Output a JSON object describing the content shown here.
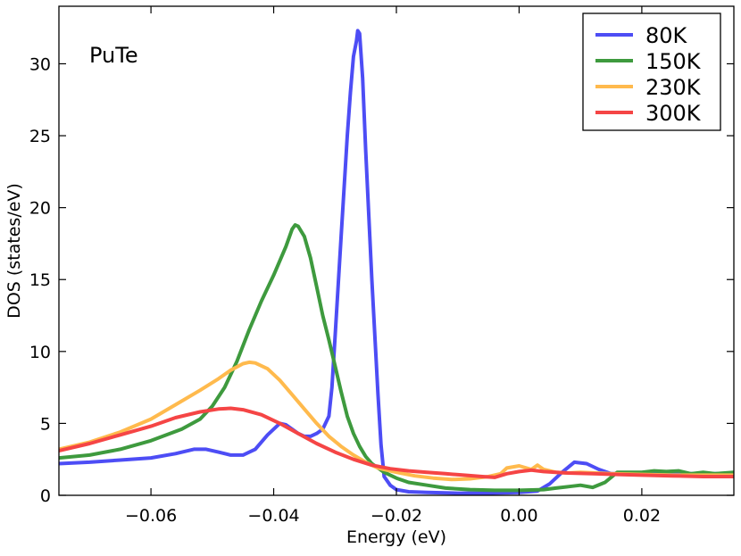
{
  "chart_data": {
    "type": "line",
    "title": "",
    "annotation": "PuTe",
    "xlabel": "Energy (eV)",
    "ylabel": "DOS (states/eV)",
    "xlim": [
      -0.075,
      0.035
    ],
    "ylim": [
      0,
      34
    ],
    "legend_position": "top-right",
    "x_ticks": [
      {
        "value": -0.06,
        "label": "−0.06"
      },
      {
        "value": -0.04,
        "label": "−0.04"
      },
      {
        "value": -0.02,
        "label": "−0.02"
      },
      {
        "value": 0.0,
        "label": "0.00"
      },
      {
        "value": 0.02,
        "label": "0.02"
      }
    ],
    "y_ticks": [
      {
        "value": 0,
        "label": "0"
      },
      {
        "value": 5,
        "label": "5"
      },
      {
        "value": 10,
        "label": "10"
      },
      {
        "value": 15,
        "label": "15"
      },
      {
        "value": 20,
        "label": "20"
      },
      {
        "value": 25,
        "label": "25"
      },
      {
        "value": 30,
        "label": "30"
      }
    ],
    "series": [
      {
        "name": "80K",
        "color": "#4d4df5",
        "points": [
          [
            -0.075,
            2.2
          ],
          [
            -0.07,
            2.3
          ],
          [
            -0.065,
            2.45
          ],
          [
            -0.06,
            2.6
          ],
          [
            -0.056,
            2.9
          ],
          [
            -0.053,
            3.2
          ],
          [
            -0.051,
            3.2
          ],
          [
            -0.049,
            3.0
          ],
          [
            -0.047,
            2.8
          ],
          [
            -0.045,
            2.8
          ],
          [
            -0.043,
            3.2
          ],
          [
            -0.041,
            4.2
          ],
          [
            -0.039,
            5.0
          ],
          [
            -0.038,
            4.9
          ],
          [
            -0.037,
            4.6
          ],
          [
            -0.036,
            4.3
          ],
          [
            -0.035,
            4.1
          ],
          [
            -0.034,
            4.1
          ],
          [
            -0.033,
            4.3
          ],
          [
            -0.032,
            4.6
          ],
          [
            -0.031,
            5.5
          ],
          [
            -0.0305,
            7.5
          ],
          [
            -0.03,
            11.0
          ],
          [
            -0.029,
            18.0
          ],
          [
            -0.028,
            25.0
          ],
          [
            -0.0275,
            28.0
          ],
          [
            -0.027,
            30.5
          ],
          [
            -0.0265,
            31.6
          ],
          [
            -0.0263,
            32.3
          ],
          [
            -0.026,
            32.1
          ],
          [
            -0.0255,
            29.0
          ],
          [
            -0.025,
            24.0
          ],
          [
            -0.024,
            15.0
          ],
          [
            -0.023,
            7.0
          ],
          [
            -0.0225,
            3.5
          ],
          [
            -0.022,
            1.3
          ],
          [
            -0.021,
            0.7
          ],
          [
            -0.02,
            0.4
          ],
          [
            -0.018,
            0.25
          ],
          [
            -0.015,
            0.2
          ],
          [
            -0.01,
            0.15
          ],
          [
            -0.005,
            0.15
          ],
          [
            0.0,
            0.2
          ],
          [
            0.003,
            0.3
          ],
          [
            0.005,
            0.8
          ],
          [
            0.007,
            1.6
          ],
          [
            0.009,
            2.3
          ],
          [
            0.011,
            2.2
          ],
          [
            0.013,
            1.8
          ],
          [
            0.015,
            1.5
          ],
          [
            0.02,
            1.5
          ],
          [
            0.025,
            1.5
          ],
          [
            0.03,
            1.5
          ],
          [
            0.035,
            1.5
          ]
        ]
      },
      {
        "name": "150K",
        "color": "#3e9a3e",
        "points": [
          [
            -0.075,
            2.6
          ],
          [
            -0.07,
            2.8
          ],
          [
            -0.065,
            3.2
          ],
          [
            -0.06,
            3.8
          ],
          [
            -0.055,
            4.6
          ],
          [
            -0.052,
            5.3
          ],
          [
            -0.05,
            6.2
          ],
          [
            -0.048,
            7.5
          ],
          [
            -0.046,
            9.3
          ],
          [
            -0.044,
            11.5
          ],
          [
            -0.042,
            13.5
          ],
          [
            -0.04,
            15.3
          ],
          [
            -0.038,
            17.3
          ],
          [
            -0.037,
            18.5
          ],
          [
            -0.0365,
            18.8
          ],
          [
            -0.036,
            18.7
          ],
          [
            -0.035,
            18.0
          ],
          [
            -0.034,
            16.5
          ],
          [
            -0.033,
            14.5
          ],
          [
            -0.032,
            12.5
          ],
          [
            -0.031,
            10.8
          ],
          [
            -0.03,
            9.0
          ],
          [
            -0.029,
            7.2
          ],
          [
            -0.028,
            5.5
          ],
          [
            -0.027,
            4.3
          ],
          [
            -0.026,
            3.4
          ],
          [
            -0.025,
            2.7
          ],
          [
            -0.024,
            2.2
          ],
          [
            -0.022,
            1.6
          ],
          [
            -0.02,
            1.2
          ],
          [
            -0.018,
            0.9
          ],
          [
            -0.015,
            0.7
          ],
          [
            -0.012,
            0.5
          ],
          [
            -0.008,
            0.4
          ],
          [
            -0.004,
            0.35
          ],
          [
            0.0,
            0.35
          ],
          [
            0.004,
            0.4
          ],
          [
            0.006,
            0.5
          ],
          [
            0.008,
            0.6
          ],
          [
            0.01,
            0.7
          ],
          [
            0.012,
            0.55
          ],
          [
            0.014,
            0.9
          ],
          [
            0.016,
            1.6
          ],
          [
            0.018,
            1.6
          ],
          [
            0.02,
            1.6
          ],
          [
            0.022,
            1.7
          ],
          [
            0.024,
            1.65
          ],
          [
            0.026,
            1.7
          ],
          [
            0.028,
            1.5
          ],
          [
            0.03,
            1.6
          ],
          [
            0.032,
            1.5
          ],
          [
            0.035,
            1.6
          ]
        ]
      },
      {
        "name": "230K",
        "color": "#ffba4d",
        "points": [
          [
            -0.075,
            3.2
          ],
          [
            -0.07,
            3.7
          ],
          [
            -0.065,
            4.4
          ],
          [
            -0.06,
            5.3
          ],
          [
            -0.056,
            6.3
          ],
          [
            -0.052,
            7.3
          ],
          [
            -0.049,
            8.1
          ],
          [
            -0.047,
            8.7
          ],
          [
            -0.045,
            9.15
          ],
          [
            -0.044,
            9.25
          ],
          [
            -0.043,
            9.2
          ],
          [
            -0.041,
            8.8
          ],
          [
            -0.039,
            8.0
          ],
          [
            -0.037,
            7.0
          ],
          [
            -0.035,
            6.0
          ],
          [
            -0.033,
            5.0
          ],
          [
            -0.031,
            4.1
          ],
          [
            -0.029,
            3.4
          ],
          [
            -0.027,
            2.8
          ],
          [
            -0.025,
            2.3
          ],
          [
            -0.023,
            1.9
          ],
          [
            -0.02,
            1.6
          ],
          [
            -0.017,
            1.35
          ],
          [
            -0.014,
            1.2
          ],
          [
            -0.011,
            1.1
          ],
          [
            -0.008,
            1.15
          ],
          [
            -0.005,
            1.3
          ],
          [
            -0.003,
            1.5
          ],
          [
            -0.002,
            1.9
          ],
          [
            0.0,
            2.05
          ],
          [
            0.002,
            1.8
          ],
          [
            0.003,
            2.1
          ],
          [
            0.004,
            1.8
          ],
          [
            0.006,
            1.6
          ],
          [
            0.008,
            1.55
          ],
          [
            0.01,
            1.6
          ],
          [
            0.015,
            1.5
          ],
          [
            0.02,
            1.45
          ],
          [
            0.025,
            1.4
          ],
          [
            0.03,
            1.4
          ],
          [
            0.035,
            1.4
          ]
        ]
      },
      {
        "name": "300K",
        "color": "#f54545",
        "points": [
          [
            -0.075,
            3.1
          ],
          [
            -0.07,
            3.6
          ],
          [
            -0.065,
            4.2
          ],
          [
            -0.06,
            4.8
          ],
          [
            -0.056,
            5.4
          ],
          [
            -0.052,
            5.8
          ],
          [
            -0.049,
            6.0
          ],
          [
            -0.047,
            6.05
          ],
          [
            -0.045,
            5.95
          ],
          [
            -0.042,
            5.6
          ],
          [
            -0.039,
            5.0
          ],
          [
            -0.036,
            4.3
          ],
          [
            -0.033,
            3.6
          ],
          [
            -0.03,
            3.0
          ],
          [
            -0.027,
            2.5
          ],
          [
            -0.024,
            2.1
          ],
          [
            -0.021,
            1.85
          ],
          [
            -0.018,
            1.7
          ],
          [
            -0.015,
            1.6
          ],
          [
            -0.012,
            1.5
          ],
          [
            -0.009,
            1.4
          ],
          [
            -0.006,
            1.3
          ],
          [
            -0.004,
            1.25
          ],
          [
            -0.002,
            1.5
          ],
          [
            0.0,
            1.65
          ],
          [
            0.002,
            1.75
          ],
          [
            0.004,
            1.65
          ],
          [
            0.006,
            1.6
          ],
          [
            0.008,
            1.55
          ],
          [
            0.012,
            1.5
          ],
          [
            0.016,
            1.45
          ],
          [
            0.02,
            1.4
          ],
          [
            0.025,
            1.35
          ],
          [
            0.03,
            1.3
          ],
          [
            0.035,
            1.3
          ]
        ]
      }
    ]
  }
}
